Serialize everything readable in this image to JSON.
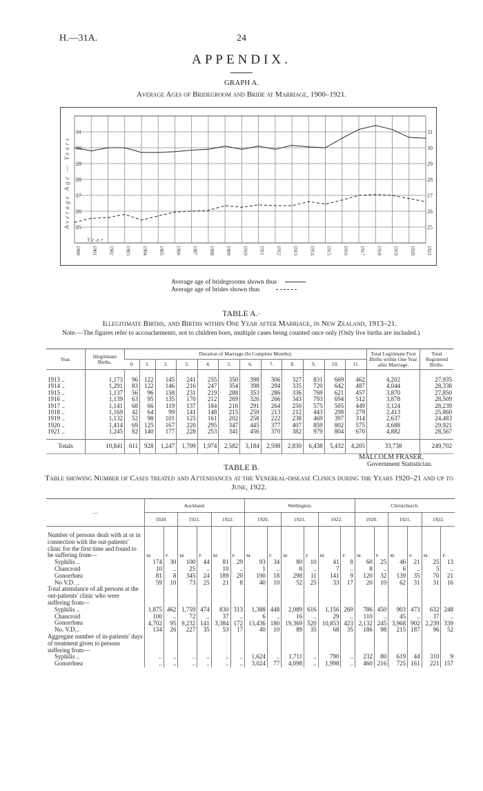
{
  "header": {
    "doc_ref": "H.—31A.",
    "page_number": "24",
    "appendix": "APPENDIX."
  },
  "graph": {
    "label": "GRAPH A.",
    "subtitle": "Average Ages of Bridegroom and Bride at Marriage, 1900–1921."
  },
  "chart_data": {
    "type": "line",
    "title": "Average Ages of Bridegroom and Bride at Marriage, 1900–1921.",
    "ylabel": "Average Age — Years",
    "xlabel": "Year",
    "x": [
      1900,
      1901,
      1902,
      1903,
      1904,
      1905,
      1906,
      1907,
      1908,
      1909,
      1910,
      1911,
      1912,
      1913,
      1914,
      1915,
      1916,
      1917,
      1918,
      1919,
      1920,
      1921
    ],
    "yticks": [
      25,
      26,
      27,
      28,
      29,
      30,
      31
    ],
    "ylim": [
      24,
      32
    ],
    "grid": true,
    "series": [
      {
        "name": "Average age of bridegrooms",
        "style": "solid",
        "values": [
          30.0,
          29.8,
          30.0,
          30.0,
          29.7,
          29.7,
          29.75,
          29.85,
          29.9,
          30.1,
          29.9,
          30.1,
          29.9,
          30.15,
          30.05,
          30.0,
          30.6,
          31.15,
          31.4,
          31.15,
          30.65,
          30.6
        ]
      },
      {
        "name": "Average age of brides",
        "style": "dashed",
        "values": [
          25.3,
          25.55,
          25.6,
          25.8,
          25.45,
          25.7,
          25.95,
          26.0,
          26.05,
          26.35,
          26.25,
          26.4,
          26.35,
          26.35,
          26.6,
          26.45,
          26.7,
          27.0,
          27.05,
          27.0,
          26.8,
          26.6
        ]
      }
    ],
    "legend": [
      "Average age of bridegrooms shown thus",
      "Average age of brides shown thus"
    ],
    "legend_placement": "bottom"
  },
  "table_a": {
    "title": "TABLE A.·",
    "subtitle": "Illegitimate Births, and Births within One Year after Marriage, in New Zealand, 1913–21.",
    "note": "Note.—The figures refer to accouchements, not to children born, multiple cases being counted once only (Only live births are included.)",
    "headers": {
      "year": "Year.",
      "illegitimate": "Illegitimate Births.",
      "duration": "Duration of Marriage (In Complete Months).",
      "months": [
        "0.",
        "1.",
        "2.",
        "3.",
        "4.",
        "5.",
        "6.",
        "7.",
        "8.",
        "9.",
        "10.",
        "11."
      ],
      "total_legit": "Total Legitimate First Births within One Year after Marriage.",
      "total_reg": "Total Registered Births."
    },
    "rows": [
      [
        "1913  ..",
        "1,173",
        "96",
        "122",
        "145",
        "241",
        "255",
        "350",
        "398",
        "306",
        "327",
        "831",
        "669",
        "462",
        "4,202",
        "27,935"
      ],
      [
        "1914  ..",
        "1,291",
        "83",
        "122",
        "146",
        "216",
        "247",
        "354",
        "398",
        "294",
        "335",
        "720",
        "642",
        "487",
        "4,044",
        "28,338"
      ],
      [
        "1915  ..",
        "1,137",
        "56",
        "96",
        "158",
        "231",
        "219",
        "288",
        "353",
        "286",
        "336",
        "769",
        "621",
        "457",
        "3,870",
        "27,850"
      ],
      [
        "1916  ..",
        "1,139",
        "63",
        "95",
        "135",
        "170",
        "212",
        "269",
        "326",
        "266",
        "343",
        "793",
        "694",
        "512",
        "3,878",
        "28,509"
      ],
      [
        "1917  ..",
        "1,141",
        "68",
        "66",
        "119",
        "137",
        "184",
        "216",
        "291",
        "264",
        "250",
        "575",
        "505",
        "449",
        "3,124",
        "28,239"
      ],
      [
        "1918  ..",
        "1,169",
        "42",
        "64",
        "99",
        "141",
        "148",
        "215",
        "259",
        "213",
        "212",
        "443",
        "298",
        "279",
        "2,413",
        "25,860"
      ],
      [
        "1919  ..",
        "1,132",
        "52",
        "98",
        "101",
        "125",
        "161",
        "202",
        "258",
        "222",
        "238",
        "469",
        "397",
        "314",
        "2,637",
        "24,483"
      ],
      [
        "1920  ..",
        "1,414",
        "69",
        "125",
        "167",
        "220",
        "295",
        "347",
        "445",
        "377",
        "407",
        "859",
        "802",
        "575",
        "4,688",
        "29,921"
      ],
      [
        "1921  ..",
        "1,245",
        "82",
        "140",
        "177",
        "228",
        "253",
        "341",
        "456",
        "370",
        "382",
        "979",
        "804",
        "670",
        "4,882",
        "28,567"
      ]
    ],
    "totals": [
      "Totals",
      "10,841",
      "611",
      "928",
      "1,247",
      "1,709",
      "1,974",
      "2,582",
      "3,184",
      "2,598",
      "2,830",
      "6,438",
      "5,432",
      "4,205",
      "33,738",
      "249,702"
    ]
  },
  "signature": {
    "name": "MALCOLM FRASER,",
    "title": "Government Statistician."
  },
  "table_b": {
    "title": "TABLE B.",
    "subtitle": "Table showing Number of Cases treated and Attendances at the Venereal-disease Clinics during the Years 1920–21 and up to June, 1922.",
    "stub_header": "—",
    "cities": [
      "Auckland.",
      "Wellington.",
      "Christchurch."
    ],
    "years": [
      "1920.",
      "1921.",
      "1922."
    ],
    "sex": [
      "M.",
      "F."
    ],
    "sections": [
      {
        "label": "Number of persons dealt with at or in connection with the out-patients' clinic for the first time and found to be suffering from—",
        "rows": [
          {
            "label": "Syphilis ..",
            "values": [
              "174",
              "30",
              "100",
              "44",
              "81",
              "29",
              "93",
              "34",
              "80",
              "10",
              "41",
              "8",
              "60",
              "25",
              "46",
              "21",
              "25",
              "13"
            ]
          },
          {
            "label": "Chancroid",
            "values": [
              "10",
              "..",
              "25",
              "..",
              "10",
              "..",
              "1",
              "..",
              "8",
              "..",
              "7",
              "..",
              "8",
              "..",
              "6",
              "..",
              "5",
              ".."
            ]
          },
          {
            "label": "Gonorrhœa",
            "values": [
              "81",
              "8",
              "345",
              "24",
              "189",
              "20",
              "190",
              "18",
              "298",
              "11",
              "141",
              "9",
              "120",
              "32",
              "139",
              "35",
              "70",
              "21"
            ]
          },
          {
            "label": "No V.D. ..",
            "values": [
              "59",
              "10",
              "73",
              "25",
              "21",
              "8",
              "40",
              "10",
              "52",
              "25",
              "33",
              "17",
              "20",
              "10",
              "62",
              "31",
              "31",
              "16"
            ]
          }
        ]
      },
      {
        "label": "Total attendance of all persons at the out-patients' clinic who were suffering from—",
        "rows": [
          {
            "label": "Syphilis ..",
            "values": [
              "1,875",
              "462",
              "1,759",
              "474",
              "830",
              "313",
              "1,388",
              "448",
              "2,089",
              "616",
              "1,156",
              "269",
              "786",
              "450",
              "903",
              "473",
              "632",
              "248"
            ]
          },
          {
            "label": "Chancroid",
            "values": [
              "100",
              "..",
              "72",
              "..",
              "37",
              "..",
              "6",
              "..",
              "16",
              "..",
              "29",
              "..",
              "110",
              "..",
              "45",
              "..",
              "37",
              ".."
            ]
          },
          {
            "label": "Gonorrhœa",
            "values": [
              "4,702",
              "95",
              "9,232",
              "141",
              "3,384",
              "172",
              "13,436",
              "180",
              "19,369",
              "520",
              "10,853",
              "423",
              "2,132",
              "245",
              "3,968",
              "902",
              "2,239",
              "339"
            ]
          },
          {
            "label": "No. V.D...",
            "values": [
              "134",
              "26",
              "227",
              "35",
              "53",
              "17",
              "40",
              "10",
              "89",
              "35",
              "68",
              "35",
              "186",
              "98",
              "215",
              "187",
              "96",
              "52"
            ]
          }
        ]
      },
      {
        "label": "Aggregate number of in-patients' days of treatment given to persons suffering from—",
        "rows": [
          {
            "label": "Syphilis ..",
            "values": [
              "..",
              "..",
              "..",
              "..",
              "..",
              "..",
              "1,624",
              "..",
              "1,711",
              "..",
              "790",
              "..",
              "232",
              "80",
              "619",
              "44",
              "310",
              "9"
            ]
          },
          {
            "label": "Gonorrhœa",
            "values": [
              "..",
              "..",
              "..",
              "..",
              "..",
              "..",
              "3,024",
              "77",
              "4,098",
              "..",
              "1,998",
              "..",
              "460",
              "216",
              "725",
              "161",
              "221",
              "157"
            ]
          }
        ]
      }
    ]
  }
}
